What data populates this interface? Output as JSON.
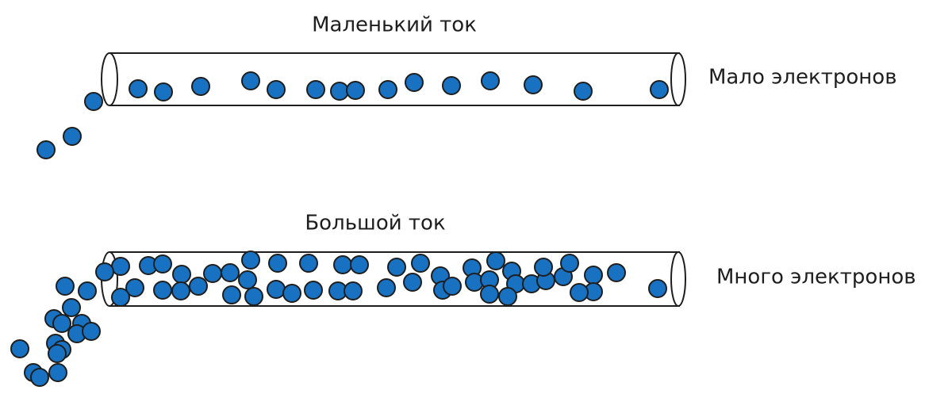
{
  "diagrams": [
    {
      "title": "Маленький ток",
      "label": "Мало электронов"
    },
    {
      "title": "Большой ток",
      "label": "Много электронов"
    }
  ]
}
